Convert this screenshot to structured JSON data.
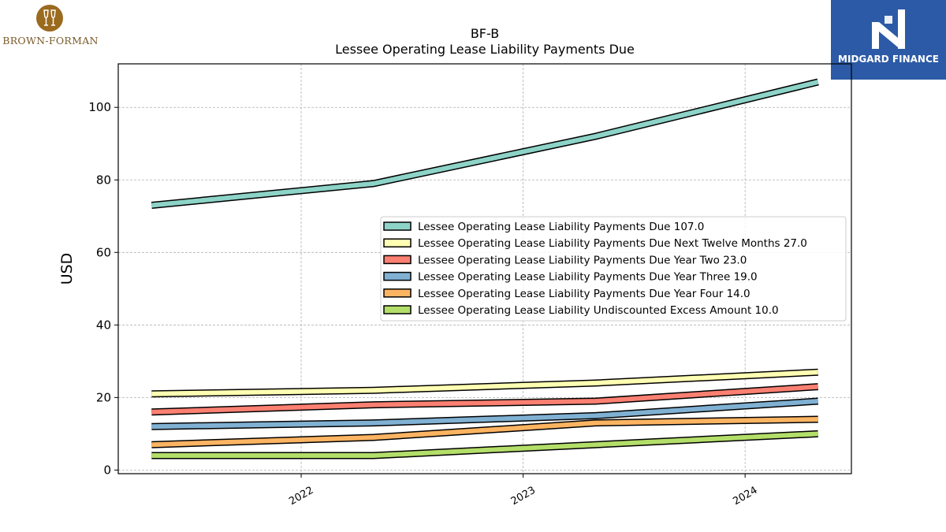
{
  "logos": {
    "left": {
      "text": "BROWN-FORMAN",
      "color": "#9a6a1e"
    },
    "right": {
      "text": "MIDGARD FINANCE",
      "color": "#2c5aa6"
    }
  },
  "chart_data": {
    "type": "line",
    "title": "BF-B",
    "subtitle": "Lessee Operating Lease Liability Payments Due",
    "xlabel": "",
    "ylabel": "USD",
    "x": [
      "2021-04-30",
      "2022-04-30",
      "2023-04-30",
      "2024-04-30"
    ],
    "xticks": [
      "2022",
      "2023",
      "2024"
    ],
    "yticks": [
      0,
      20,
      40,
      60,
      80,
      100
    ],
    "ylim": [
      -1,
      112
    ],
    "grid": true,
    "legend_position": "center-right",
    "series": [
      {
        "name": "Lessee Operating Lease Liability Payments Due  107.0",
        "color": "#8dd3c7",
        "values": [
          73,
          79,
          92,
          107
        ]
      },
      {
        "name": "Lessee Operating Lease Liability Payments Due Next Twelve Months  27.0",
        "color": "#ffffb3",
        "values": [
          21,
          22,
          24,
          27
        ]
      },
      {
        "name": "Lessee Operating Lease Liability Payments Due Year Two  23.0",
        "color": "#fb8072",
        "values": [
          16,
          18,
          19,
          23
        ]
      },
      {
        "name": "Lessee Operating Lease Liability Payments Due Year Three  19.0",
        "color": "#80b1d3",
        "values": [
          12,
          13,
          15,
          19
        ]
      },
      {
        "name": "Lessee Operating Lease Liability Payments Due Year Four  14.0",
        "color": "#fdb462",
        "values": [
          7,
          9,
          13,
          14
        ]
      },
      {
        "name": "Lessee Operating Lease Liability Undiscounted Excess Amount  10.0",
        "color": "#b3de69",
        "values": [
          4,
          4,
          7,
          10
        ]
      }
    ]
  }
}
